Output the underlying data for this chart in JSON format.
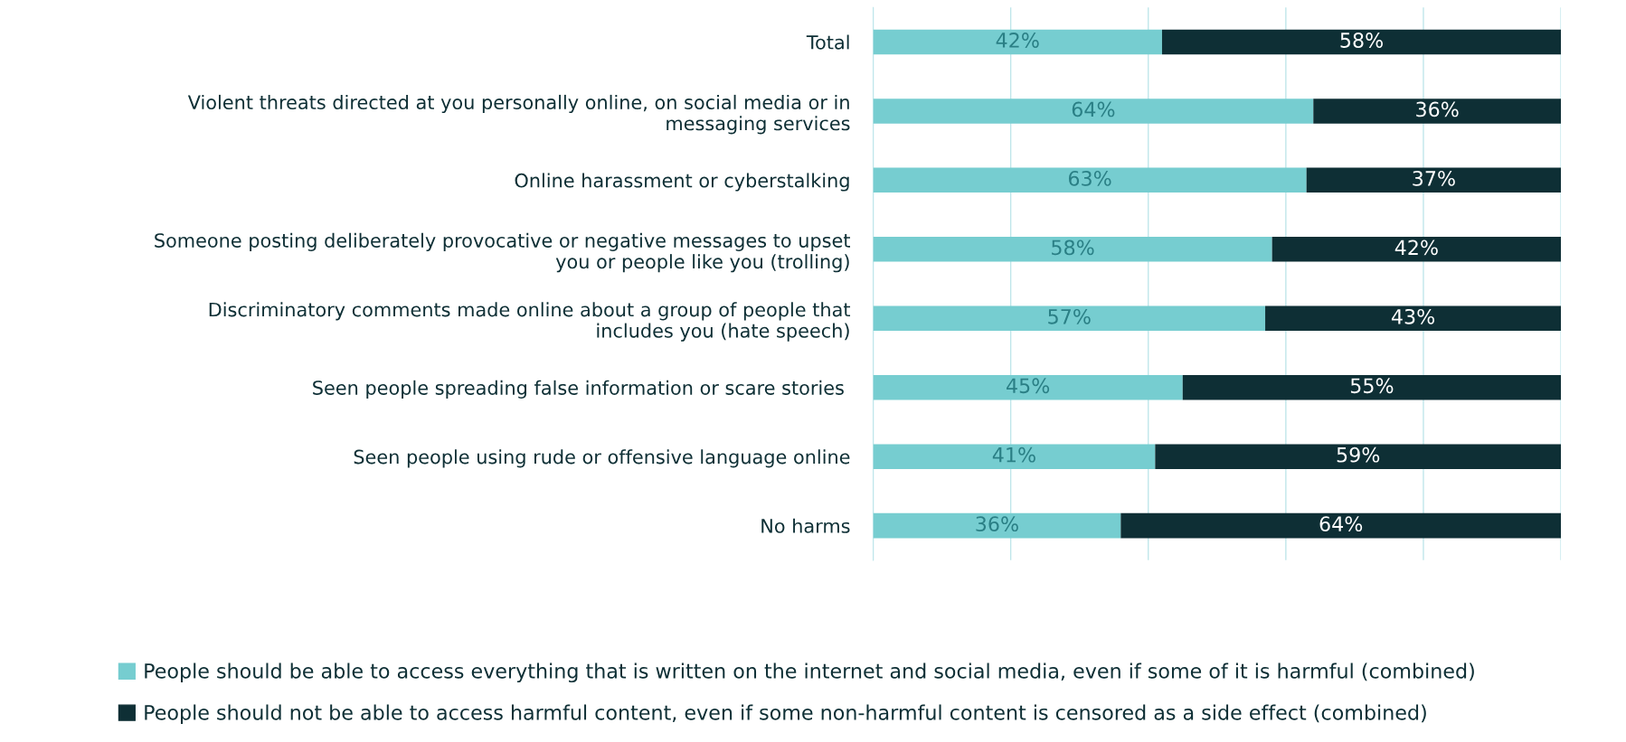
{
  "chart_data": {
    "type": "bar",
    "orientation": "horizontal",
    "stacked": true,
    "categories": [
      "Total",
      "Violent threats directed at you personally online, on social media or in\nmessaging services",
      "Online harassment or cyberstalking",
      "Someone posting deliberately provocative or negative messages to upset\nyou or people like you (trolling)",
      "Discriminatory comments made online about a group of people that\nincludes you (hate speech)",
      "Seen people spreading false information or scare stories ",
      "Seen people using rude or offensive language online",
      "No harms"
    ],
    "series": [
      {
        "name": "People should be able to access everything that is written on the internet and social media, even if some of it is harmful (combined)",
        "color": "#76cdd0",
        "values": [
          42,
          64,
          63,
          58,
          57,
          45,
          41,
          36
        ],
        "value_labels": [
          "42%",
          "64%",
          "63%",
          "58%",
          "57%",
          "45%",
          "41%",
          "36%"
        ]
      },
      {
        "name": "People should not be able to access harmful content, even if some non-harmful content is censored as a side effect (combined)",
        "color": "#0e2f35",
        "values": [
          58,
          36,
          37,
          42,
          43,
          55,
          59,
          64
        ],
        "value_labels": [
          "58%",
          "36%",
          "37%",
          "42%",
          "43%",
          "55%",
          "59%",
          "64%"
        ]
      }
    ],
    "xlim": [
      0,
      100
    ],
    "xticks": [
      {
        "value": 0,
        "label": null
      },
      {
        "value": 20,
        "label": null
      },
      {
        "value": 40,
        "label": null
      },
      {
        "value": 60,
        "label": null
      },
      {
        "value": 80,
        "label": null
      },
      {
        "value": 100,
        "label": null
      }
    ],
    "tick_labels": "y",
    "grid": "x",
    "legend": "bottom"
  }
}
